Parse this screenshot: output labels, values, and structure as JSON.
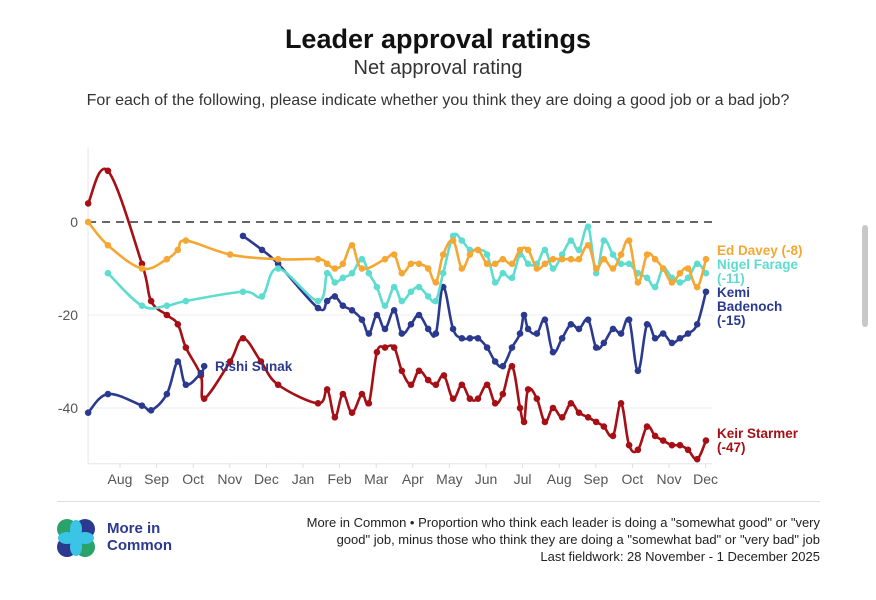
{
  "header": {
    "title": "Leader approval ratings",
    "subtitle": "Net approval rating",
    "question": "For each of the following, please indicate whether you think they are doing a good job or a bad job?"
  },
  "footer": {
    "logo_text_line1": "More in",
    "logo_text_line2": "Common",
    "note_line1": "More in Common • Proportion who think each leader is doing a \"somewhat good\" or \"very",
    "note_line2": "good\" job, minus those who think they are doing a \"somewhat bad\" or \"very bad\" job",
    "note_line3": "Last fieldwork: 28 November - 1 December 2025"
  },
  "chart_data": {
    "type": "line",
    "title": "Leader approval ratings",
    "subtitle": "Net approval rating",
    "xlabel": "",
    "ylabel": "Net approval",
    "x_unit": "month index (1 = Aug 2024, 17 = Dec 2025)",
    "xlim": [
      0.1,
      17.05
    ],
    "ylim": [
      -52,
      16
    ],
    "x_ticks": [
      {
        "x": 1,
        "label": "Aug"
      },
      {
        "x": 2,
        "label": "Sep"
      },
      {
        "x": 3,
        "label": "Oct"
      },
      {
        "x": 4,
        "label": "Nov"
      },
      {
        "x": 5,
        "label": "Dec"
      },
      {
        "x": 6,
        "label": "Jan"
      },
      {
        "x": 7,
        "label": "Feb"
      },
      {
        "x": 8,
        "label": "Mar"
      },
      {
        "x": 9,
        "label": "Apr"
      },
      {
        "x": 10,
        "label": "May"
      },
      {
        "x": 11,
        "label": "Jun"
      },
      {
        "x": 12,
        "label": "Jul"
      },
      {
        "x": 13,
        "label": "Aug"
      },
      {
        "x": 14,
        "label": "Sep"
      },
      {
        "x": 15,
        "label": "Oct"
      },
      {
        "x": 16,
        "label": "Nov"
      },
      {
        "x": 17,
        "label": "Dec"
      }
    ],
    "y_ticks": [
      {
        "y": 0,
        "label": "0"
      },
      {
        "y": -20,
        "label": "-20"
      },
      {
        "y": -40,
        "label": "-40"
      }
    ],
    "reference_line": 0,
    "grid": true,
    "series": [
      {
        "name": "Keir Starmer",
        "label_lines": [
          "Keir Starmer",
          "(-47)"
        ],
        "color": "#a50f15",
        "points": [
          [
            0.13,
            4
          ],
          [
            0.67,
            11
          ],
          [
            1.6,
            -9
          ],
          [
            1.85,
            -17
          ],
          [
            2.28,
            -20
          ],
          [
            2.58,
            -22
          ],
          [
            2.8,
            -27
          ],
          [
            3.21,
            -33
          ],
          [
            3.3,
            -38
          ],
          [
            4.01,
            -30
          ],
          [
            4.36,
            -25
          ],
          [
            4.85,
            -30
          ],
          [
            5.32,
            -35
          ],
          [
            6.41,
            -39
          ],
          [
            6.66,
            -36
          ],
          [
            6.87,
            -42
          ],
          [
            7.09,
            -37
          ],
          [
            7.34,
            -41
          ],
          [
            7.61,
            -37
          ],
          [
            7.8,
            -39
          ],
          [
            8.02,
            -28
          ],
          [
            8.24,
            -27
          ],
          [
            8.49,
            -27
          ],
          [
            8.7,
            -32
          ],
          [
            8.95,
            -35
          ],
          [
            9.17,
            -32
          ],
          [
            9.42,
            -34
          ],
          [
            9.63,
            -35
          ],
          [
            9.85,
            -33
          ],
          [
            10.1,
            -38
          ],
          [
            10.34,
            -35
          ],
          [
            10.56,
            -38
          ],
          [
            10.78,
            -38
          ],
          [
            11.03,
            -35
          ],
          [
            11.25,
            -39
          ],
          [
            11.46,
            -37
          ],
          [
            11.71,
            -31
          ],
          [
            11.93,
            -40
          ],
          [
            12.04,
            -43
          ],
          [
            12.15,
            -36
          ],
          [
            12.39,
            -38
          ],
          [
            12.61,
            -43
          ],
          [
            12.83,
            -40
          ],
          [
            13.08,
            -42
          ],
          [
            13.32,
            -39
          ],
          [
            13.54,
            -41
          ],
          [
            13.79,
            -42
          ],
          [
            14.01,
            -43
          ],
          [
            14.22,
            -44
          ],
          [
            14.47,
            -46
          ],
          [
            14.69,
            -39
          ],
          [
            14.91,
            -48
          ],
          [
            15.15,
            -49
          ],
          [
            15.4,
            -44
          ],
          [
            15.62,
            -46
          ],
          [
            15.84,
            -47
          ],
          [
            16.08,
            -48
          ],
          [
            16.3,
            -48
          ],
          [
            16.52,
            -49
          ],
          [
            16.77,
            -51
          ],
          [
            17.01,
            -47
          ]
        ]
      },
      {
        "name": "Rishi Sunak",
        "label_lines": [
          "Rishi Sunak"
        ],
        "color": "#2b3a8f",
        "points": [
          [
            0.13,
            -41
          ],
          [
            0.67,
            -37
          ],
          [
            1.6,
            -39.5
          ],
          [
            1.85,
            -40.5
          ],
          [
            2.28,
            -37
          ],
          [
            2.58,
            -30
          ],
          [
            2.8,
            -35
          ],
          [
            3.21,
            -32.5
          ],
          [
            3.3,
            -31
          ]
        ]
      },
      {
        "name": "Kemi Badenoch",
        "label_lines": [
          "Kemi",
          "Badenoch",
          "(-15)"
        ],
        "color": "#2b3a8f",
        "points": [
          [
            4.36,
            -3
          ],
          [
            4.88,
            -6
          ],
          [
            5.32,
            -9
          ],
          [
            6.41,
            -18.5
          ],
          [
            6.66,
            -17
          ],
          [
            6.87,
            -16
          ],
          [
            7.09,
            -18
          ],
          [
            7.34,
            -19
          ],
          [
            7.61,
            -21
          ],
          [
            7.8,
            -24
          ],
          [
            8.02,
            -20
          ],
          [
            8.24,
            -23
          ],
          [
            8.49,
            -19
          ],
          [
            8.7,
            -24
          ],
          [
            8.95,
            -22
          ],
          [
            9.17,
            -20
          ],
          [
            9.42,
            -23
          ],
          [
            9.63,
            -24
          ],
          [
            9.83,
            -14
          ],
          [
            10.1,
            -23
          ],
          [
            10.34,
            -25
          ],
          [
            10.56,
            -25
          ],
          [
            10.78,
            -25
          ],
          [
            11.03,
            -27
          ],
          [
            11.25,
            -30
          ],
          [
            11.46,
            -31
          ],
          [
            11.71,
            -27
          ],
          [
            11.93,
            -24
          ],
          [
            12.04,
            -20
          ],
          [
            12.15,
            -23
          ],
          [
            12.39,
            -24
          ],
          [
            12.61,
            -21
          ],
          [
            12.83,
            -28
          ],
          [
            13.08,
            -25
          ],
          [
            13.32,
            -22
          ],
          [
            13.54,
            -23
          ],
          [
            13.79,
            -21
          ],
          [
            14.01,
            -27
          ],
          [
            14.22,
            -26
          ],
          [
            14.47,
            -23
          ],
          [
            14.69,
            -24
          ],
          [
            14.91,
            -21
          ],
          [
            15.15,
            -32
          ],
          [
            15.4,
            -22
          ],
          [
            15.62,
            -25
          ],
          [
            15.84,
            -24
          ],
          [
            16.08,
            -26
          ],
          [
            16.3,
            -25
          ],
          [
            16.52,
            -24
          ],
          [
            16.77,
            -22
          ],
          [
            17.01,
            -15
          ]
        ]
      },
      {
        "name": "Nigel Farage",
        "label_lines": [
          "Nigel Farage",
          "(-11)"
        ],
        "color": "#5fdcd0",
        "points": [
          [
            0.67,
            -11
          ],
          [
            1.6,
            -18
          ],
          [
            2.28,
            -18
          ],
          [
            2.8,
            -17
          ],
          [
            4.36,
            -15
          ],
          [
            4.88,
            -16
          ],
          [
            5.32,
            -10
          ],
          [
            6.41,
            -17
          ],
          [
            6.66,
            -11
          ],
          [
            6.87,
            -13
          ],
          [
            7.09,
            -12
          ],
          [
            7.34,
            -11
          ],
          [
            7.61,
            -8
          ],
          [
            7.8,
            -11
          ],
          [
            8.02,
            -14
          ],
          [
            8.24,
            -18
          ],
          [
            8.49,
            -14
          ],
          [
            8.7,
            -17
          ],
          [
            8.95,
            -15
          ],
          [
            9.17,
            -14
          ],
          [
            9.42,
            -16
          ],
          [
            9.63,
            -17
          ],
          [
            9.83,
            -11
          ],
          [
            10.1,
            -3
          ],
          [
            10.34,
            -4
          ],
          [
            10.56,
            -6
          ],
          [
            10.78,
            -6
          ],
          [
            11.03,
            -7
          ],
          [
            11.25,
            -13
          ],
          [
            11.46,
            -11
          ],
          [
            11.71,
            -12
          ],
          [
            11.93,
            -7
          ],
          [
            12.15,
            -9
          ],
          [
            12.39,
            -9
          ],
          [
            12.61,
            -6
          ],
          [
            12.83,
            -10
          ],
          [
            13.08,
            -7
          ],
          [
            13.32,
            -4
          ],
          [
            13.54,
            -6
          ],
          [
            13.79,
            -1
          ],
          [
            14.01,
            -11
          ],
          [
            14.22,
            -4
          ],
          [
            14.47,
            -7
          ],
          [
            14.69,
            -9
          ],
          [
            14.91,
            -9
          ],
          [
            15.15,
            -11
          ],
          [
            15.4,
            -12
          ],
          [
            15.62,
            -14
          ],
          [
            15.84,
            -10
          ],
          [
            16.08,
            -12
          ],
          [
            16.3,
            -13
          ],
          [
            16.52,
            -12
          ],
          [
            16.77,
            -9
          ],
          [
            17.01,
            -11
          ]
        ]
      },
      {
        "name": "Ed Davey",
        "label_lines": [
          "Ed Davey (-8)"
        ],
        "color": "#f5a733",
        "points": [
          [
            0.13,
            0
          ],
          [
            0.67,
            -5
          ],
          [
            1.6,
            -10
          ],
          [
            2.28,
            -8
          ],
          [
            2.58,
            -6
          ],
          [
            2.8,
            -4
          ],
          [
            4.01,
            -7
          ],
          [
            5.32,
            -8
          ],
          [
            6.41,
            -8
          ],
          [
            6.66,
            -9
          ],
          [
            6.87,
            -10
          ],
          [
            7.09,
            -9
          ],
          [
            7.34,
            -5
          ],
          [
            7.61,
            -10
          ],
          [
            8.24,
            -8
          ],
          [
            8.49,
            -7
          ],
          [
            8.7,
            -11
          ],
          [
            8.95,
            -9
          ],
          [
            9.17,
            -9
          ],
          [
            9.42,
            -10
          ],
          [
            9.63,
            -13
          ],
          [
            9.83,
            -7
          ],
          [
            10.1,
            -4
          ],
          [
            10.34,
            -10
          ],
          [
            10.56,
            -7
          ],
          [
            10.78,
            -6
          ],
          [
            11.03,
            -9
          ],
          [
            11.25,
            -9
          ],
          [
            11.46,
            -8
          ],
          [
            11.71,
            -9
          ],
          [
            11.93,
            -6
          ],
          [
            12.15,
            -6
          ],
          [
            12.39,
            -10
          ],
          [
            12.61,
            -9
          ],
          [
            12.83,
            -8
          ],
          [
            13.08,
            -8
          ],
          [
            13.32,
            -8
          ],
          [
            13.54,
            -8
          ],
          [
            13.79,
            -5
          ],
          [
            14.01,
            -10
          ],
          [
            14.22,
            -8
          ],
          [
            14.47,
            -10
          ],
          [
            14.69,
            -7
          ],
          [
            14.91,
            -4
          ],
          [
            15.15,
            -13
          ],
          [
            15.4,
            -7
          ],
          [
            15.62,
            -8
          ],
          [
            15.84,
            -10
          ],
          [
            16.08,
            -13
          ],
          [
            16.3,
            -11
          ],
          [
            16.52,
            -10
          ],
          [
            16.77,
            -14
          ],
          [
            17.01,
            -8
          ]
        ]
      }
    ]
  }
}
